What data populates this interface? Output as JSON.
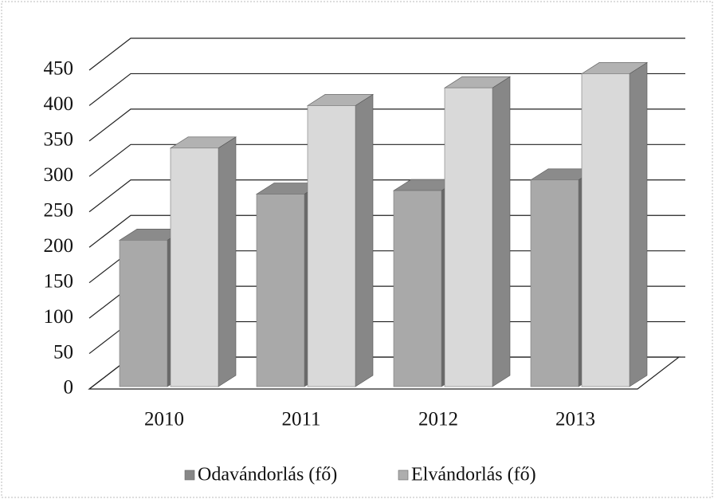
{
  "chart_data": {
    "type": "bar3d",
    "categories": [
      "2010",
      "2011",
      "2012",
      "2013"
    ],
    "series": [
      {
        "name": "Odavándorlás (fő)",
        "color": "#a9a9a9",
        "values": [
          210,
          275,
          280,
          295
        ]
      },
      {
        "name": "Elvándorlás (fő)",
        "color": "#d9d9d9",
        "values": [
          340,
          400,
          425,
          445
        ]
      }
    ],
    "ylim": [
      0,
      450
    ],
    "yticks": [
      0,
      50,
      100,
      150,
      200,
      250,
      300,
      350,
      400,
      450
    ],
    "grid": true,
    "legend": "bottom"
  }
}
